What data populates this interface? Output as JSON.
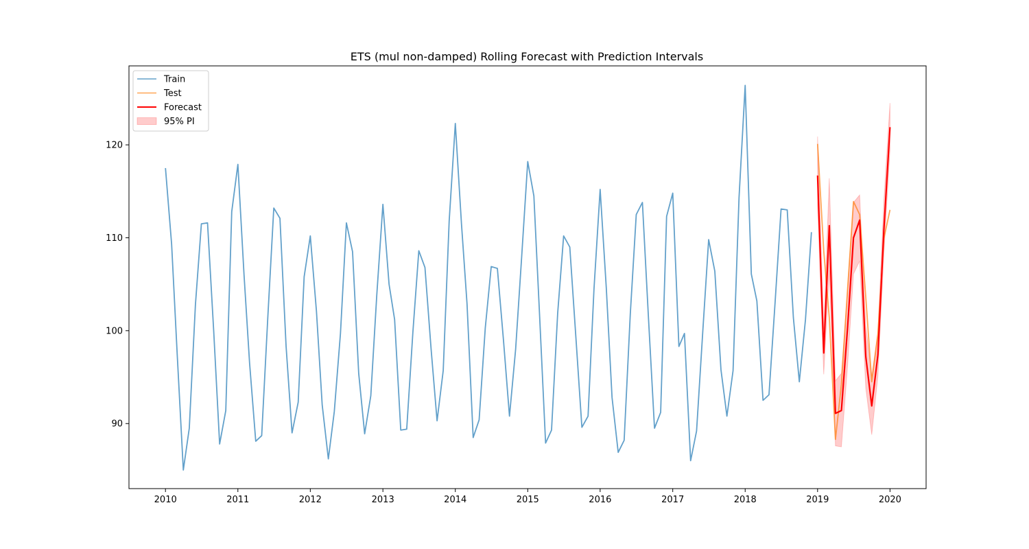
{
  "chart_data": {
    "type": "line",
    "title": "ETS (mul non-damped) Rolling Forecast with Prediction Intervals",
    "xlabel": "",
    "ylabel": "",
    "x_range": [
      "2009-07-01",
      "2020-07-01"
    ],
    "ylim": [
      83,
      128.5
    ],
    "x_ticks": [
      "2010",
      "2011",
      "2012",
      "2013",
      "2014",
      "2015",
      "2016",
      "2017",
      "2018",
      "2019",
      "2020"
    ],
    "y_ticks": [
      90,
      100,
      110,
      120
    ],
    "grid": false,
    "legend_position": "upper-left",
    "colors": {
      "train": "#1f77b4",
      "test": "#ff7f0e",
      "forecast": "#ff0000",
      "pi": "#ff0000"
    },
    "series": [
      {
        "name": "Train",
        "dates": [
          "2010-01",
          "2010-02",
          "2010-03",
          "2010-04",
          "2010-05",
          "2010-06",
          "2010-07",
          "2010-08",
          "2010-09",
          "2010-10",
          "2010-11",
          "2010-12",
          "2011-01",
          "2011-02",
          "2011-03",
          "2011-04",
          "2011-05",
          "2011-06",
          "2011-07",
          "2011-08",
          "2011-09",
          "2011-10",
          "2011-11",
          "2011-12",
          "2012-01",
          "2012-02",
          "2012-03",
          "2012-04",
          "2012-05",
          "2012-06",
          "2012-07",
          "2012-08",
          "2012-09",
          "2012-10",
          "2012-11",
          "2012-12",
          "2013-01",
          "2013-02",
          "2013-03",
          "2013-04",
          "2013-05",
          "2013-06",
          "2013-07",
          "2013-08",
          "2013-09",
          "2013-10",
          "2013-11",
          "2013-12",
          "2014-01",
          "2014-02",
          "2014-03",
          "2014-04",
          "2014-05",
          "2014-06",
          "2014-07",
          "2014-08",
          "2014-09",
          "2014-10",
          "2014-11",
          "2014-12",
          "2015-01",
          "2015-02",
          "2015-03",
          "2015-04",
          "2015-05",
          "2015-06",
          "2015-07",
          "2015-08",
          "2015-09",
          "2015-10",
          "2015-11",
          "2015-12",
          "2016-01",
          "2016-02",
          "2016-03",
          "2016-04",
          "2016-05",
          "2016-06",
          "2016-07",
          "2016-08",
          "2016-09",
          "2016-10",
          "2016-11",
          "2016-12",
          "2017-01",
          "2017-02",
          "2017-03",
          "2017-04",
          "2017-05",
          "2017-06",
          "2017-07",
          "2017-08",
          "2017-09",
          "2017-10",
          "2017-11",
          "2017-12",
          "2018-01",
          "2018-02",
          "2018-03",
          "2018-04",
          "2018-05",
          "2018-06",
          "2018-07",
          "2018-08",
          "2018-09",
          "2018-10",
          "2018-11",
          "2018-12"
        ],
        "values": [
          117.5,
          109.3,
          97.5,
          85.0,
          89.5,
          102.8,
          111.5,
          111.6,
          100.0,
          87.8,
          91.4,
          112.8,
          117.9,
          106.0,
          96.5,
          88.1,
          88.7,
          101.5,
          113.2,
          112.1,
          98.3,
          89.0,
          92.3,
          105.8,
          110.2,
          102.1,
          92.0,
          86.2,
          91.3,
          99.7,
          111.6,
          108.5,
          95.4,
          88.9,
          93.0,
          103.8,
          113.6,
          105.0,
          101.2,
          89.3,
          89.4,
          99.8,
          108.6,
          106.8,
          98.0,
          90.3,
          95.7,
          111.8,
          122.3,
          111.5,
          102.9,
          88.5,
          90.4,
          100.3,
          106.9,
          106.7,
          98.9,
          90.8,
          98.0,
          107.8,
          118.2,
          114.5,
          102.0,
          87.9,
          89.3,
          101.9,
          110.2,
          109.0,
          99.2,
          89.6,
          90.8,
          104.5,
          115.2,
          104.6,
          92.8,
          86.9,
          88.2,
          101.8,
          112.5,
          113.8,
          101.2,
          89.5,
          91.2,
          112.3,
          114.8,
          98.3,
          99.7,
          86.0,
          89.2,
          99.8,
          109.8,
          106.4,
          95.8,
          90.8,
          95.7,
          114.3,
          126.4,
          106.1,
          103.2,
          92.5,
          93.1,
          103.1,
          113.1,
          113.0,
          101.4,
          94.5,
          101.2,
          110.6
        ]
      },
      {
        "name": "Test",
        "dates": [
          "2019-01",
          "2019-02",
          "2019-03",
          "2019-04",
          "2019-05",
          "2019-06",
          "2019-07",
          "2019-08",
          "2019-09",
          "2019-10",
          "2019-11",
          "2019-12",
          "2020-01"
        ],
        "values": [
          120.1,
          108.6,
          101.4,
          88.3,
          94.2,
          104.4,
          113.9,
          112.5,
          103.6,
          94.5,
          99.6,
          109.9,
          113.0
        ]
      },
      {
        "name": "Forecast",
        "dates": [
          "2019-01",
          "2019-02",
          "2019-03",
          "2019-04",
          "2019-05",
          "2019-06",
          "2019-07",
          "2019-08",
          "2019-09",
          "2019-10",
          "2019-11",
          "2019-12",
          "2020-01"
        ],
        "values": [
          116.7,
          97.6,
          111.3,
          91.1,
          91.4,
          100.3,
          110.0,
          111.9,
          97.2,
          91.9,
          97.4,
          110.8,
          121.9
        ]
      }
    ],
    "interval": {
      "name": "95% PI",
      "dates": [
        "2019-01",
        "2019-02",
        "2019-03",
        "2019-04",
        "2019-05",
        "2019-06",
        "2019-07",
        "2019-08",
        "2019-09",
        "2019-10",
        "2019-11",
        "2019-12",
        "2020-01"
      ],
      "lower": [
        113.5,
        95.3,
        106.5,
        87.6,
        87.5,
        96.2,
        106.1,
        107.5,
        93.8,
        88.8,
        95.1,
        108.2,
        119.5
      ],
      "upper": [
        120.9,
        100.2,
        116.4,
        94.6,
        95.4,
        104.2,
        113.8,
        114.6,
        100.5,
        95.1,
        99.9,
        113.9,
        124.5
      ]
    }
  }
}
